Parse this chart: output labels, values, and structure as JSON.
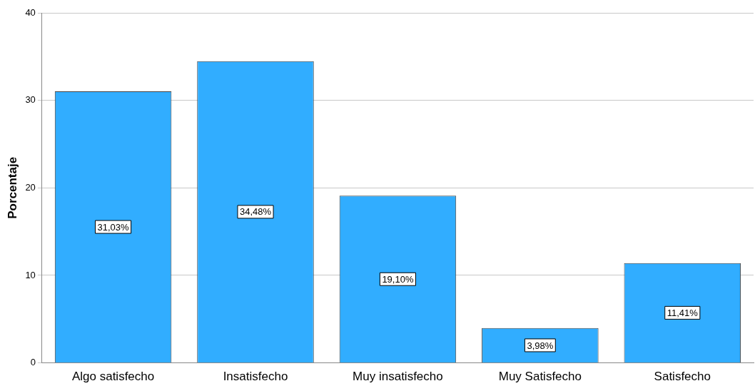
{
  "chart_data": {
    "type": "bar",
    "ylabel": "Porcentaje",
    "categories": [
      "Algo satisfecho",
      "Insatisfecho",
      "Muy insatisfecho",
      "Muy Satisfecho",
      "Satisfecho"
    ],
    "values": [
      31.03,
      34.48,
      19.1,
      3.98,
      11.41
    ],
    "value_labels": [
      "31,03%",
      "34,48%",
      "19,10%",
      "3,98%",
      "11,41%"
    ],
    "color": "#31adff",
    "ylim": [
      0,
      40
    ],
    "yticks": [
      0,
      10,
      20,
      30,
      40
    ],
    "grid": "y",
    "legend": false
  }
}
